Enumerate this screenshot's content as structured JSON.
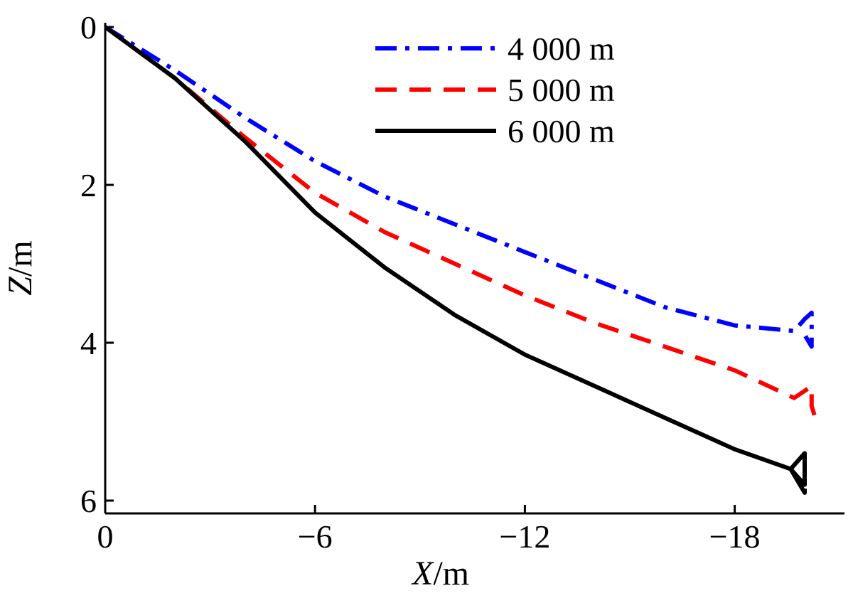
{
  "chart_data": {
    "type": "line",
    "xlabel": {
      "var": "X",
      "unit": "/m"
    },
    "ylabel": {
      "var": "Z",
      "unit": "/m"
    },
    "xlim": [
      0,
      -21
    ],
    "ylim": [
      0,
      6
    ],
    "y_inverted": true,
    "x_ticks": [
      0,
      -6,
      -12,
      -18
    ],
    "x_tick_labels": [
      "0",
      "−6",
      "−12",
      "−18"
    ],
    "y_ticks": [
      0,
      2,
      4,
      6
    ],
    "y_tick_labels": [
      "0",
      "2",
      "4",
      "6"
    ],
    "grid": false,
    "legend_position": "top-right",
    "series": [
      {
        "name": "4 000 m",
        "color": "#0000ff",
        "dash": "dashdot",
        "x": [
          0,
          -2,
          -4,
          -6,
          -8,
          -10,
          -12,
          -14,
          -16,
          -18,
          -19.7,
          -20.0,
          -20.2,
          -20.2,
          -20.0
        ],
        "y": [
          0,
          0.55,
          1.15,
          1.7,
          2.15,
          2.5,
          2.85,
          3.2,
          3.55,
          3.78,
          3.85,
          3.7,
          3.62,
          4.05,
          3.9
        ]
      },
      {
        "name": "5 000 m",
        "color": "#ff0000",
        "dash": "dashed",
        "x": [
          0,
          -2,
          -4,
          -6,
          -8,
          -10,
          -12,
          -14,
          -16,
          -18,
          -19.7,
          -20.2,
          -20.2,
          -20.3
        ],
        "y": [
          0,
          0.65,
          1.4,
          2.1,
          2.6,
          3.0,
          3.4,
          3.75,
          4.05,
          4.35,
          4.7,
          4.55,
          4.8,
          4.95
        ]
      },
      {
        "name": "6 000 m",
        "color": "#000000",
        "dash": "solid",
        "x": [
          0,
          -2,
          -4,
          -6,
          -8,
          -10,
          -12,
          -14,
          -16,
          -18,
          -19.6,
          -20.0,
          -20.0,
          -19.6,
          -20.0,
          -20.0
        ],
        "y": [
          0,
          0.65,
          1.45,
          2.35,
          3.05,
          3.65,
          4.15,
          4.55,
          4.95,
          5.35,
          5.6,
          5.4,
          5.8,
          5.6,
          5.9,
          5.85
        ]
      }
    ]
  }
}
